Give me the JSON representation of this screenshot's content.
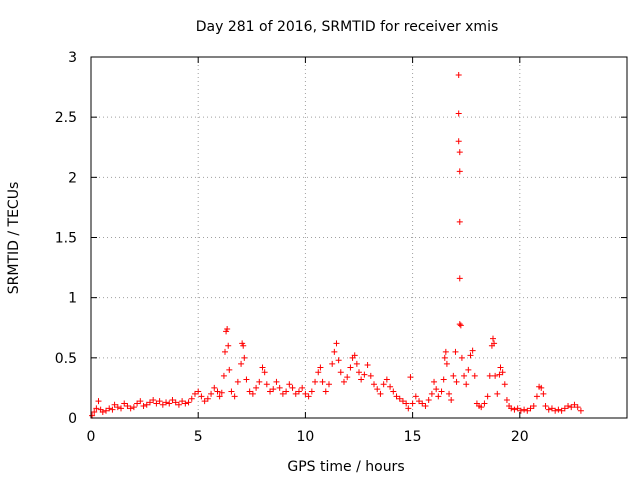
{
  "chart_data": {
    "type": "scatter",
    "title": "Day 281 of 2016, SRMTID for receiver xmis",
    "xlabel": "GPS time / hours",
    "ylabel": "SRMTID / TECUs",
    "xlim": [
      0,
      25
    ],
    "ylim": [
      0,
      3
    ],
    "xticks": [
      0,
      5,
      10,
      15,
      20
    ],
    "yticks": [
      0,
      0.5,
      1,
      1.5,
      2,
      2.5,
      3
    ],
    "xtick_labels": [
      "0",
      "5",
      "10",
      "15",
      "20"
    ],
    "ytick_labels": [
      "0",
      "0.5",
      "1",
      "1.5",
      "2",
      "2.5",
      "3"
    ],
    "grid": true,
    "marker": "+",
    "colors": {
      "series": "#ff0000",
      "grid": "#a0a0a0",
      "axis": "#000000"
    },
    "series": [
      {
        "name": "SRMTID",
        "points": [
          [
            0.05,
            0.02
          ],
          [
            0.15,
            0.05
          ],
          [
            0.25,
            0.08
          ],
          [
            0.35,
            0.14
          ],
          [
            0.45,
            0.07
          ],
          [
            0.55,
            0.05
          ],
          [
            0.7,
            0.06
          ],
          [
            0.85,
            0.08
          ],
          [
            1.0,
            0.07
          ],
          [
            1.1,
            0.11
          ],
          [
            1.25,
            0.09
          ],
          [
            1.4,
            0.08
          ],
          [
            1.55,
            0.12
          ],
          [
            1.7,
            0.1
          ],
          [
            1.85,
            0.08
          ],
          [
            2.0,
            0.09
          ],
          [
            2.15,
            0.12
          ],
          [
            2.3,
            0.14
          ],
          [
            2.45,
            0.1
          ],
          [
            2.6,
            0.11
          ],
          [
            2.75,
            0.13
          ],
          [
            2.9,
            0.15
          ],
          [
            3.05,
            0.12
          ],
          [
            3.2,
            0.14
          ],
          [
            3.35,
            0.11
          ],
          [
            3.5,
            0.13
          ],
          [
            3.65,
            0.12
          ],
          [
            3.8,
            0.15
          ],
          [
            3.95,
            0.13
          ],
          [
            4.1,
            0.11
          ],
          [
            4.25,
            0.14
          ],
          [
            4.4,
            0.12
          ],
          [
            4.55,
            0.13
          ],
          [
            4.7,
            0.16
          ],
          [
            4.85,
            0.2
          ],
          [
            5.0,
            0.22
          ],
          [
            5.15,
            0.18
          ],
          [
            5.3,
            0.14
          ],
          [
            5.45,
            0.16
          ],
          [
            5.6,
            0.2
          ],
          [
            5.75,
            0.25
          ],
          [
            5.9,
            0.22
          ],
          [
            6.0,
            0.18
          ],
          [
            6.1,
            0.21
          ],
          [
            6.2,
            0.35
          ],
          [
            6.25,
            0.55
          ],
          [
            6.3,
            0.72
          ],
          [
            6.35,
            0.74
          ],
          [
            6.4,
            0.6
          ],
          [
            6.45,
            0.4
          ],
          [
            6.55,
            0.22
          ],
          [
            6.7,
            0.18
          ],
          [
            6.85,
            0.3
          ],
          [
            7.0,
            0.45
          ],
          [
            7.05,
            0.62
          ],
          [
            7.1,
            0.6
          ],
          [
            7.15,
            0.5
          ],
          [
            7.25,
            0.32
          ],
          [
            7.4,
            0.22
          ],
          [
            7.55,
            0.2
          ],
          [
            7.7,
            0.25
          ],
          [
            7.85,
            0.3
          ],
          [
            8.0,
            0.42
          ],
          [
            8.1,
            0.38
          ],
          [
            8.2,
            0.28
          ],
          [
            8.35,
            0.22
          ],
          [
            8.5,
            0.24
          ],
          [
            8.65,
            0.3
          ],
          [
            8.8,
            0.25
          ],
          [
            8.95,
            0.2
          ],
          [
            9.1,
            0.22
          ],
          [
            9.25,
            0.28
          ],
          [
            9.4,
            0.25
          ],
          [
            9.55,
            0.2
          ],
          [
            9.7,
            0.22
          ],
          [
            9.85,
            0.25
          ],
          [
            10.0,
            0.2
          ],
          [
            10.15,
            0.18
          ],
          [
            10.3,
            0.22
          ],
          [
            10.45,
            0.3
          ],
          [
            10.6,
            0.38
          ],
          [
            10.7,
            0.42
          ],
          [
            10.8,
            0.3
          ],
          [
            10.95,
            0.22
          ],
          [
            11.1,
            0.28
          ],
          [
            11.25,
            0.45
          ],
          [
            11.35,
            0.55
          ],
          [
            11.45,
            0.62
          ],
          [
            11.55,
            0.48
          ],
          [
            11.65,
            0.38
          ],
          [
            11.8,
            0.3
          ],
          [
            11.95,
            0.34
          ],
          [
            12.1,
            0.42
          ],
          [
            12.2,
            0.5
          ],
          [
            12.3,
            0.52
          ],
          [
            12.4,
            0.45
          ],
          [
            12.5,
            0.38
          ],
          [
            12.6,
            0.32
          ],
          [
            12.75,
            0.36
          ],
          [
            12.9,
            0.44
          ],
          [
            13.05,
            0.35
          ],
          [
            13.2,
            0.28
          ],
          [
            13.35,
            0.24
          ],
          [
            13.5,
            0.2
          ],
          [
            13.65,
            0.28
          ],
          [
            13.8,
            0.32
          ],
          [
            13.95,
            0.26
          ],
          [
            14.1,
            0.22
          ],
          [
            14.25,
            0.18
          ],
          [
            14.4,
            0.16
          ],
          [
            14.55,
            0.14
          ],
          [
            14.7,
            0.12
          ],
          [
            14.8,
            0.08
          ],
          [
            14.9,
            0.34
          ],
          [
            15.0,
            0.12
          ],
          [
            15.15,
            0.18
          ],
          [
            15.3,
            0.14
          ],
          [
            15.45,
            0.12
          ],
          [
            15.6,
            0.1
          ],
          [
            15.75,
            0.15
          ],
          [
            15.9,
            0.2
          ],
          [
            16.0,
            0.3
          ],
          [
            16.1,
            0.24
          ],
          [
            16.2,
            0.18
          ],
          [
            16.35,
            0.22
          ],
          [
            16.45,
            0.32
          ],
          [
            16.5,
            0.5
          ],
          [
            16.55,
            0.55
          ],
          [
            16.6,
            0.45
          ],
          [
            16.7,
            0.2
          ],
          [
            16.8,
            0.15
          ],
          [
            16.9,
            0.35
          ],
          [
            17.0,
            0.55
          ],
          [
            17.05,
            0.3
          ],
          [
            17.15,
            2.85
          ],
          [
            17.15,
            2.53
          ],
          [
            17.15,
            2.3
          ],
          [
            17.2,
            2.21
          ],
          [
            17.2,
            2.05
          ],
          [
            17.2,
            1.63
          ],
          [
            17.2,
            1.16
          ],
          [
            17.2,
            0.78
          ],
          [
            17.25,
            0.77
          ],
          [
            17.3,
            0.5
          ],
          [
            17.4,
            0.35
          ],
          [
            17.5,
            0.28
          ],
          [
            17.6,
            0.4
          ],
          [
            17.7,
            0.52
          ],
          [
            17.8,
            0.56
          ],
          [
            17.9,
            0.35
          ],
          [
            18.0,
            0.12
          ],
          [
            18.1,
            0.1
          ],
          [
            18.2,
            0.09
          ],
          [
            18.35,
            0.12
          ],
          [
            18.5,
            0.18
          ],
          [
            18.6,
            0.35
          ],
          [
            18.7,
            0.6
          ],
          [
            18.75,
            0.66
          ],
          [
            18.8,
            0.62
          ],
          [
            18.85,
            0.35
          ],
          [
            18.95,
            0.2
          ],
          [
            19.05,
            0.36
          ],
          [
            19.1,
            0.42
          ],
          [
            19.2,
            0.38
          ],
          [
            19.3,
            0.28
          ],
          [
            19.4,
            0.15
          ],
          [
            19.5,
            0.1
          ],
          [
            19.6,
            0.08
          ],
          [
            19.75,
            0.07
          ],
          [
            19.9,
            0.08
          ],
          [
            20.05,
            0.06
          ],
          [
            20.2,
            0.07
          ],
          [
            20.35,
            0.06
          ],
          [
            20.5,
            0.08
          ],
          [
            20.65,
            0.1
          ],
          [
            20.8,
            0.18
          ],
          [
            20.9,
            0.26
          ],
          [
            21.0,
            0.25
          ],
          [
            21.1,
            0.2
          ],
          [
            21.2,
            0.1
          ],
          [
            21.35,
            0.07
          ],
          [
            21.5,
            0.08
          ],
          [
            21.65,
            0.06
          ],
          [
            21.8,
            0.07
          ],
          [
            21.95,
            0.06
          ],
          [
            22.1,
            0.08
          ],
          [
            22.25,
            0.1
          ],
          [
            22.4,
            0.09
          ],
          [
            22.55,
            0.11
          ],
          [
            22.7,
            0.09
          ],
          [
            22.85,
            0.06
          ]
        ]
      }
    ]
  }
}
